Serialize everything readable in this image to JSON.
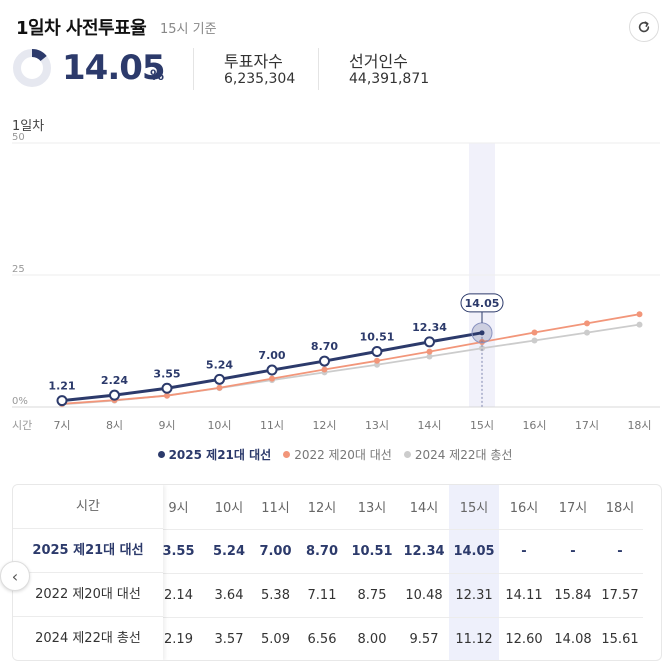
{
  "header": {
    "title": "1일차 사전투표율",
    "subtitle": "15시 기준"
  },
  "summary": {
    "rate": "14.05",
    "rate_fraction": 0.1405,
    "unit": "%",
    "voters_label": "투표자수",
    "voters_value": "6,235,304",
    "electorate_label": "선거인수",
    "electorate_value": "44,391,871"
  },
  "chart_caption": "1일차",
  "chart_data": {
    "type": "line",
    "categories": [
      "7시",
      "8시",
      "9시",
      "10시",
      "11시",
      "12시",
      "13시",
      "14시",
      "15시",
      "16시",
      "17시",
      "18시"
    ],
    "x_prefix_label": "시간",
    "ylim": [
      0,
      50
    ],
    "yticks": [
      "0%",
      "25",
      "50"
    ],
    "ytick_values": [
      0,
      25,
      50
    ],
    "grid": true,
    "highlight_category": "15시",
    "callout_value": "14.05",
    "legend_position": "bottom",
    "series": [
      {
        "name": "2025 제21대 대선",
        "color": "#2c3a6b",
        "show_labels": true,
        "values": [
          1.21,
          2.24,
          3.55,
          5.24,
          7.0,
          8.7,
          10.51,
          12.34,
          14.05,
          null,
          null,
          null
        ],
        "labels": [
          "1.21",
          "2.24",
          "3.55",
          "5.24",
          "7.00",
          "8.70",
          "10.51",
          "12.34",
          "",
          "",
          "",
          ""
        ]
      },
      {
        "name": "2022 제20대 대선",
        "color": "#f2967a",
        "show_labels": false,
        "values": [
          0.6,
          1.3,
          2.14,
          3.64,
          5.38,
          7.11,
          8.75,
          10.48,
          12.31,
          14.11,
          15.84,
          17.57
        ]
      },
      {
        "name": "2024 제22대 총선",
        "color": "#cccccc",
        "show_labels": false,
        "values": [
          0.5,
          1.2,
          2.19,
          3.57,
          5.09,
          6.56,
          8.0,
          9.57,
          11.12,
          12.6,
          14.08,
          15.61
        ]
      }
    ]
  },
  "table": {
    "header_label": "시간",
    "columns": [
      "9시",
      "10시",
      "11시",
      "12시",
      "13시",
      "14시",
      "15시",
      "16시",
      "17시",
      "18시"
    ],
    "highlight_column": 6,
    "rows": [
      {
        "name": "2025 제21대 대선",
        "bold": true,
        "cells": [
          "3.55",
          "5.24",
          "7.00",
          "8.70",
          "10.51",
          "12.34",
          "14.05",
          "-",
          "-",
          "-"
        ]
      },
      {
        "name": "2022 제20대 대선",
        "bold": false,
        "cells": [
          "2.14",
          "3.64",
          "5.38",
          "7.11",
          "8.75",
          "10.48",
          "12.31",
          "14.11",
          "15.84",
          "17.57"
        ]
      },
      {
        "name": "2024 제22대 총선",
        "bold": false,
        "cells": [
          "2.19",
          "3.57",
          "5.09",
          "6.56",
          "8.00",
          "9.57",
          "11.12",
          "12.60",
          "14.08",
          "15.61"
        ]
      }
    ]
  },
  "icons": {
    "refresh": "refresh-icon",
    "scroll_left": "chevron-left-icon",
    "donut": "donut-progress-icon"
  }
}
